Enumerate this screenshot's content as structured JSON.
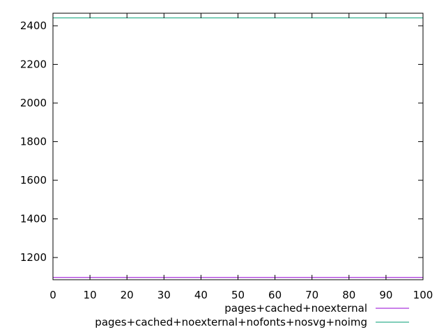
{
  "chart_data": {
    "type": "line",
    "title": "",
    "xlabel": "",
    "ylabel": "",
    "xlim": [
      0,
      100
    ],
    "ylim": [
      1085,
      2465
    ],
    "xticks": [
      0,
      10,
      20,
      30,
      40,
      50,
      60,
      70,
      80,
      90,
      100
    ],
    "yticks": [
      1200,
      1400,
      1600,
      1800,
      2000,
      2200,
      2400
    ],
    "grid": false,
    "legend_position": "bottom-right",
    "series": [
      {
        "name": "pages+cached+noexternal",
        "color": "#9400d3",
        "x": [
          0,
          100
        ],
        "y": [
          1097,
          1097
        ]
      },
      {
        "name": "pages+cached+noexternal+nofonts+nosvg+noimg",
        "color": "#009e73",
        "x": [
          0,
          100
        ],
        "y": [
          2441,
          2441
        ]
      }
    ]
  }
}
